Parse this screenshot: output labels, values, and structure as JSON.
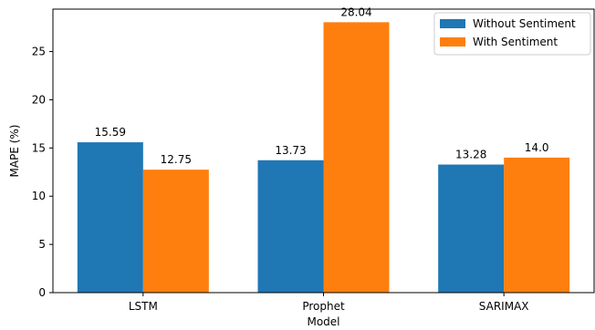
{
  "chart_data": {
    "type": "bar",
    "categories": [
      "LSTM",
      "Prophet",
      "SARIMAX"
    ],
    "series": [
      {
        "name": "Without Sentiment",
        "values": [
          15.59,
          13.73,
          13.28
        ],
        "color": "#1f77b4"
      },
      {
        "name": "With Sentiment",
        "values": [
          12.75,
          28.04,
          14.0
        ],
        "color": "#ff7f0e"
      }
    ],
    "value_labels": [
      [
        "15.59",
        "13.73",
        "13.28"
      ],
      [
        "12.75",
        "28.04",
        "14.0"
      ]
    ],
    "xlabel": "Model",
    "ylabel": "MAPE (%)",
    "ylim": [
      0,
      29.4
    ],
    "yticks": [
      0,
      5,
      10,
      15,
      20,
      25
    ],
    "ytick_labels": [
      "0",
      "5",
      "10",
      "15",
      "20",
      "25"
    ],
    "grid": false,
    "legend_position": "top-right"
  }
}
